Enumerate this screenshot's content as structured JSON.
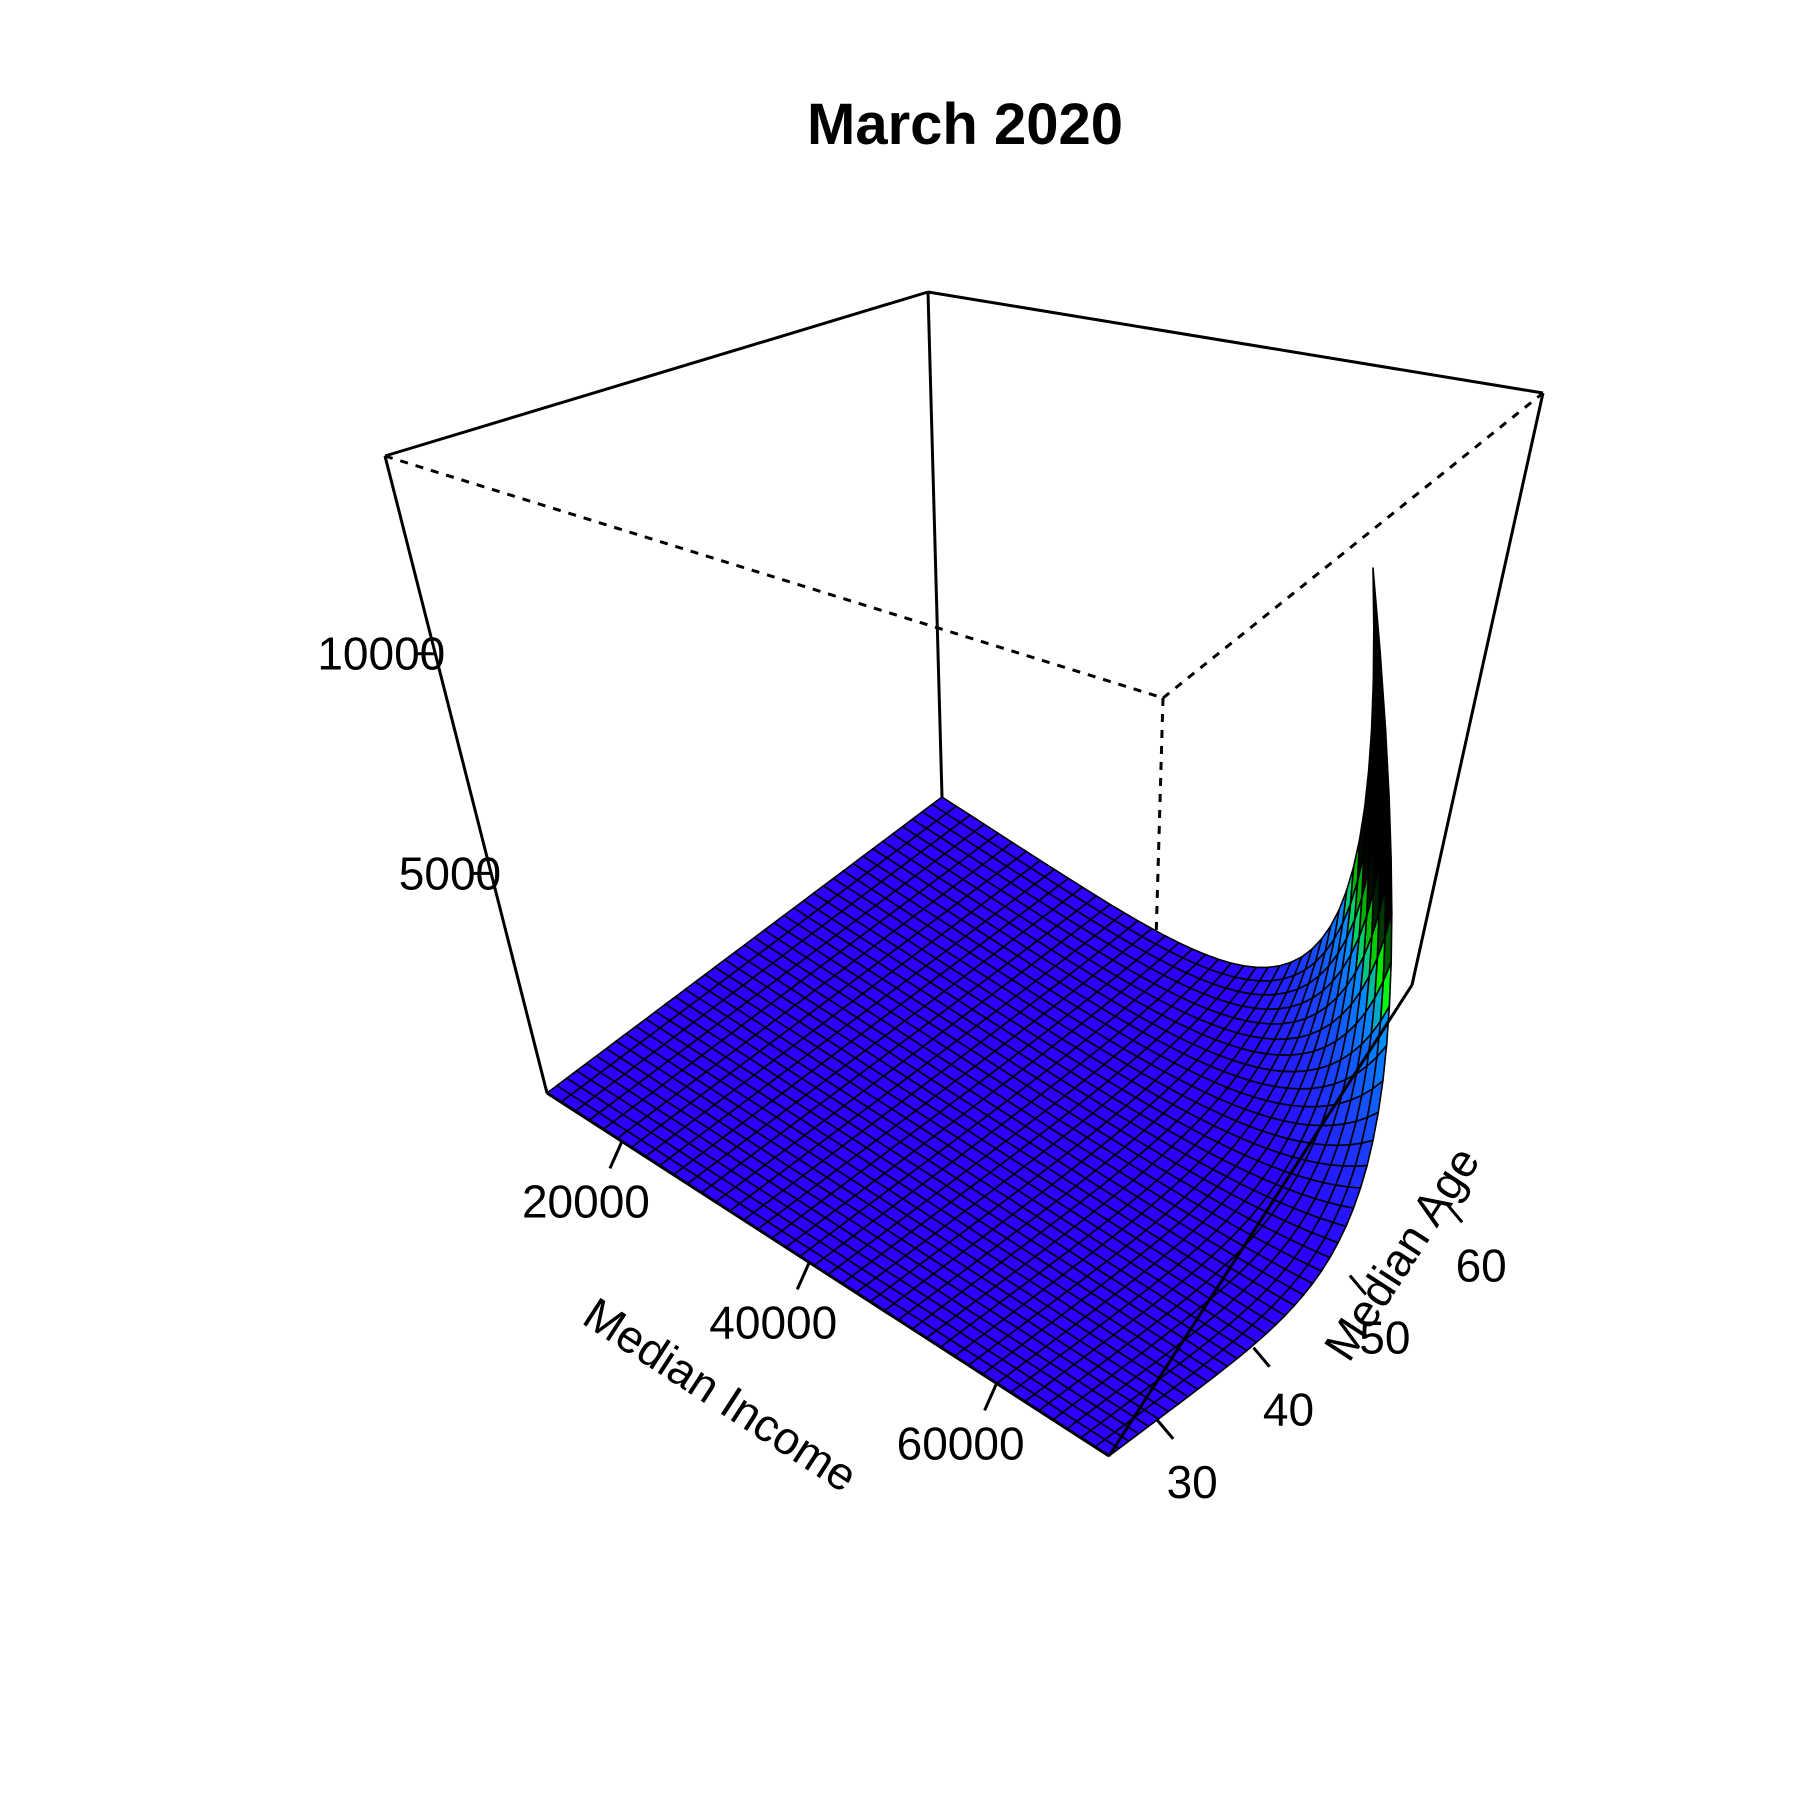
{
  "chart_data": {
    "type": "surface",
    "title": "March 2020",
    "xlabel": "Median Income",
    "ylabel": "Median Age",
    "zlabel": "",
    "x_ticks": [
      20000,
      40000,
      60000
    ],
    "y_ticks": [
      30,
      40,
      50,
      60
    ],
    "z_ticks": [
      5000,
      10000
    ],
    "xlim": [
      12000,
      72000
    ],
    "ylim": [
      25,
      66
    ],
    "zlim": [
      0,
      14500
    ],
    "grid_resolution": [
      40,
      40
    ],
    "surface_description": "Nearly flat at about 0 across the grid; rises steeply at high Median Income and high Median Age to a maximum of about 14500 near (72000, 66).",
    "surface_samples": [
      {
        "x": 12000,
        "y": 25,
        "z": 0
      },
      {
        "x": 12000,
        "y": 66,
        "z": 0
      },
      {
        "x": 72000,
        "y": 25,
        "z": 0
      },
      {
        "x": 72000,
        "y": 45,
        "z": 700
      },
      {
        "x": 72000,
        "y": 55,
        "z": 3500
      },
      {
        "x": 72000,
        "y": 60,
        "z": 7500
      },
      {
        "x": 72000,
        "y": 66,
        "z": 14500
      }
    ],
    "colors": {
      "low": "#2d00ff",
      "mid": "#0090ff",
      "high": "#00ff00",
      "peak": "#000000",
      "mesh": "#000000"
    }
  }
}
